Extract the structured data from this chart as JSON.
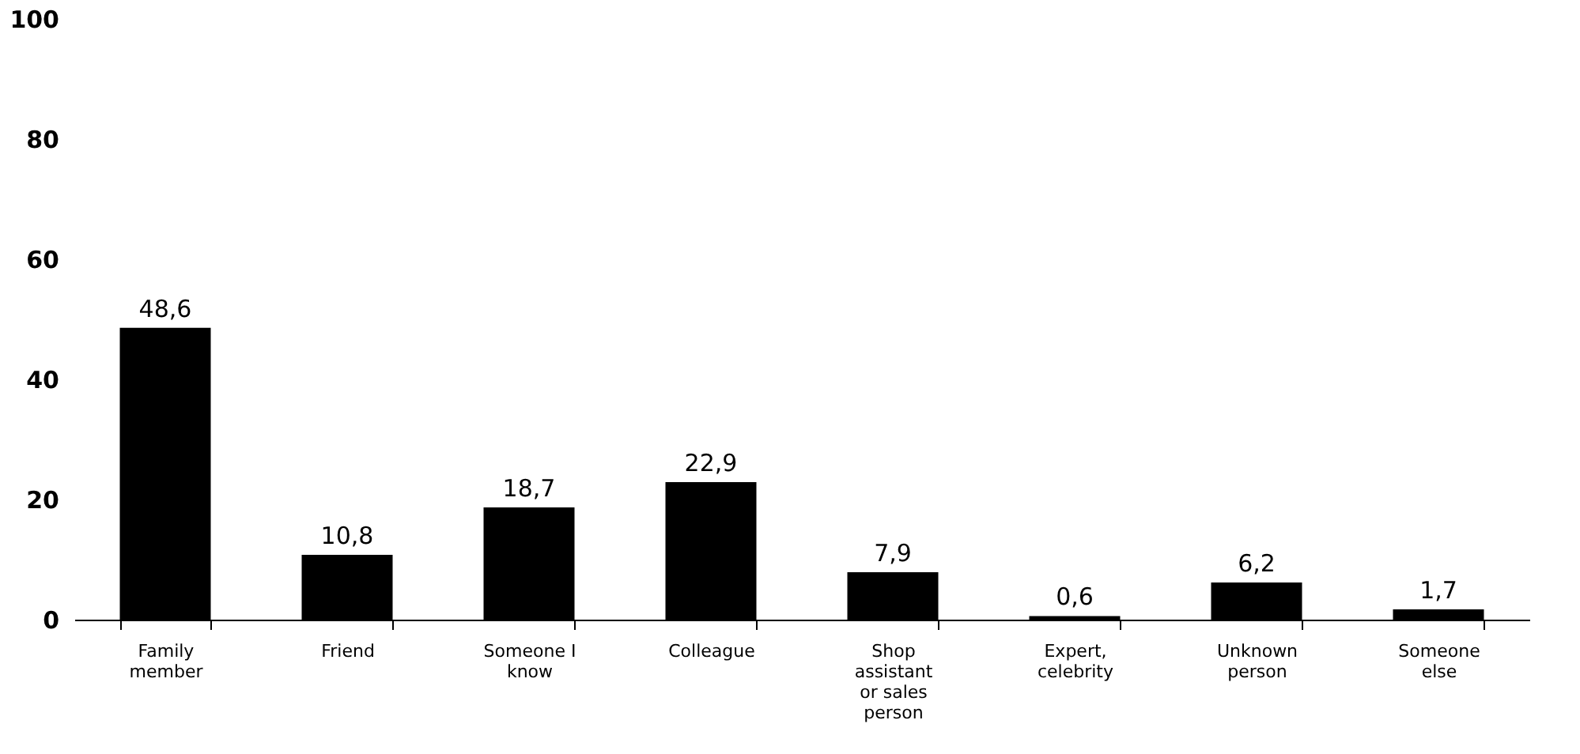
{
  "chart_data": {
    "type": "bar",
    "categories": [
      "Family member",
      "Friend",
      "Someone I know",
      "Colleague",
      "Shop assistant or sales person",
      "Expert, celebrity",
      "Unknown person",
      "Someone else"
    ],
    "values": [
      48.6,
      10.8,
      18.7,
      22.9,
      7.9,
      0.6,
      6.2,
      1.7
    ],
    "value_labels": [
      "48,6",
      "10,8",
      "18,7",
      "22,9",
      "7,9",
      "0,6",
      "6,2",
      "1,7"
    ],
    "color": "#000000",
    "ylim": [
      0,
      100
    ],
    "yticks": [
      0,
      20,
      40,
      60,
      80,
      100
    ],
    "grid": false
  }
}
